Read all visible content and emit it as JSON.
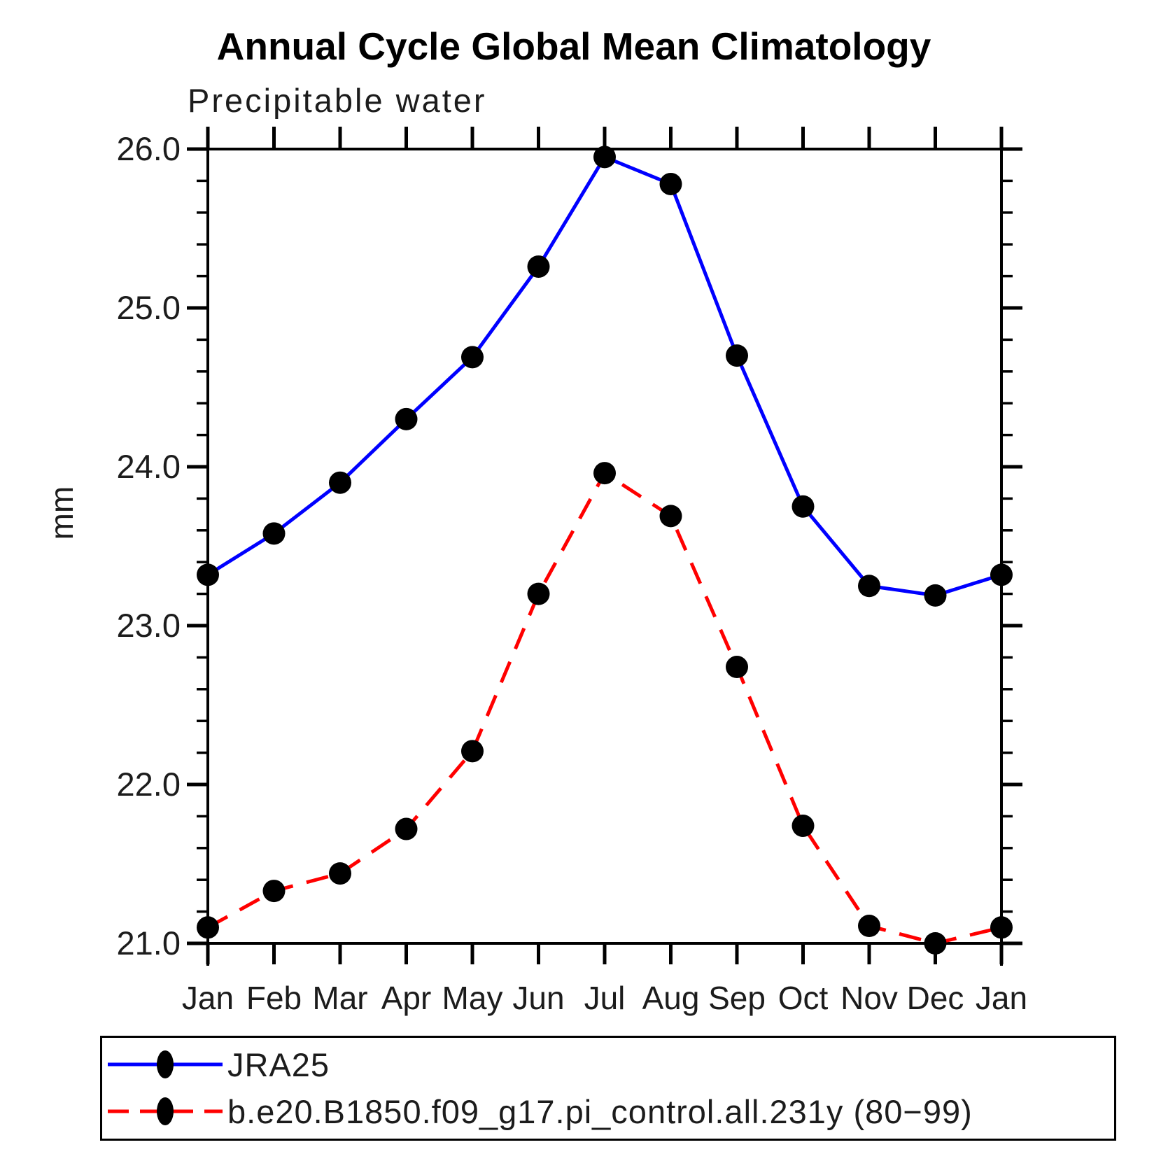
{
  "title": "Annual Cycle Global Mean Climatology",
  "subtitle": "Precipitable water",
  "y_axis": {
    "label": "mm",
    "min": 21.0,
    "max": 26.0,
    "major_step": 1.0,
    "minor_step": 0.2,
    "tick_labels": [
      "26.0",
      "25.0",
      "24.0",
      "23.0",
      "22.0",
      "21.0"
    ]
  },
  "x_axis": {
    "tick_labels": [
      "Jan",
      "Feb",
      "Mar",
      "Apr",
      "May",
      "Jun",
      "Jul",
      "Aug",
      "Sep",
      "Oct",
      "Nov",
      "Dec",
      "Jan"
    ]
  },
  "colors": {
    "jra25_line": "#0000ff",
    "model_line": "#ff0000",
    "marker": "#000000",
    "axis": "#000000",
    "text": "#1c1c1c"
  },
  "legend": [
    {
      "label": "JRA25",
      "style": "solid",
      "color": "#0000ff"
    },
    {
      "label": "b.e20.B1850.f09_g17.pi_control.all.231y (80−99)",
      "style": "dashed",
      "color": "#ff0000"
    }
  ],
  "chart_data": {
    "type": "line",
    "categories": [
      "Jan",
      "Feb",
      "Mar",
      "Apr",
      "May",
      "Jun",
      "Jul",
      "Aug",
      "Sep",
      "Oct",
      "Nov",
      "Dec",
      "Jan"
    ],
    "series": [
      {
        "name": "JRA25",
        "color": "#0000ff",
        "dash": "solid",
        "marker": "filled-circle",
        "values": [
          23.32,
          23.58,
          23.9,
          24.3,
          24.69,
          25.26,
          25.95,
          25.78,
          24.7,
          23.75,
          23.25,
          23.19,
          23.32
        ]
      },
      {
        "name": "b.e20.B1850.f09_g17.pi_control.all.231y (80−99)",
        "color": "#ff0000",
        "dash": "dashed",
        "marker": "filled-circle",
        "values": [
          21.1,
          21.33,
          21.44,
          21.72,
          22.21,
          23.2,
          23.96,
          23.69,
          22.74,
          21.74,
          21.11,
          21.0,
          21.1
        ]
      }
    ],
    "title": "Annual Cycle Global Mean Climatology",
    "subtitle": "Precipitable water",
    "xlabel": "",
    "ylabel": "mm",
    "ylim": [
      21.0,
      26.0
    ],
    "grid": false,
    "legend_position": "bottom",
    "tick_style": "outward, minor ticks on y axes only"
  }
}
